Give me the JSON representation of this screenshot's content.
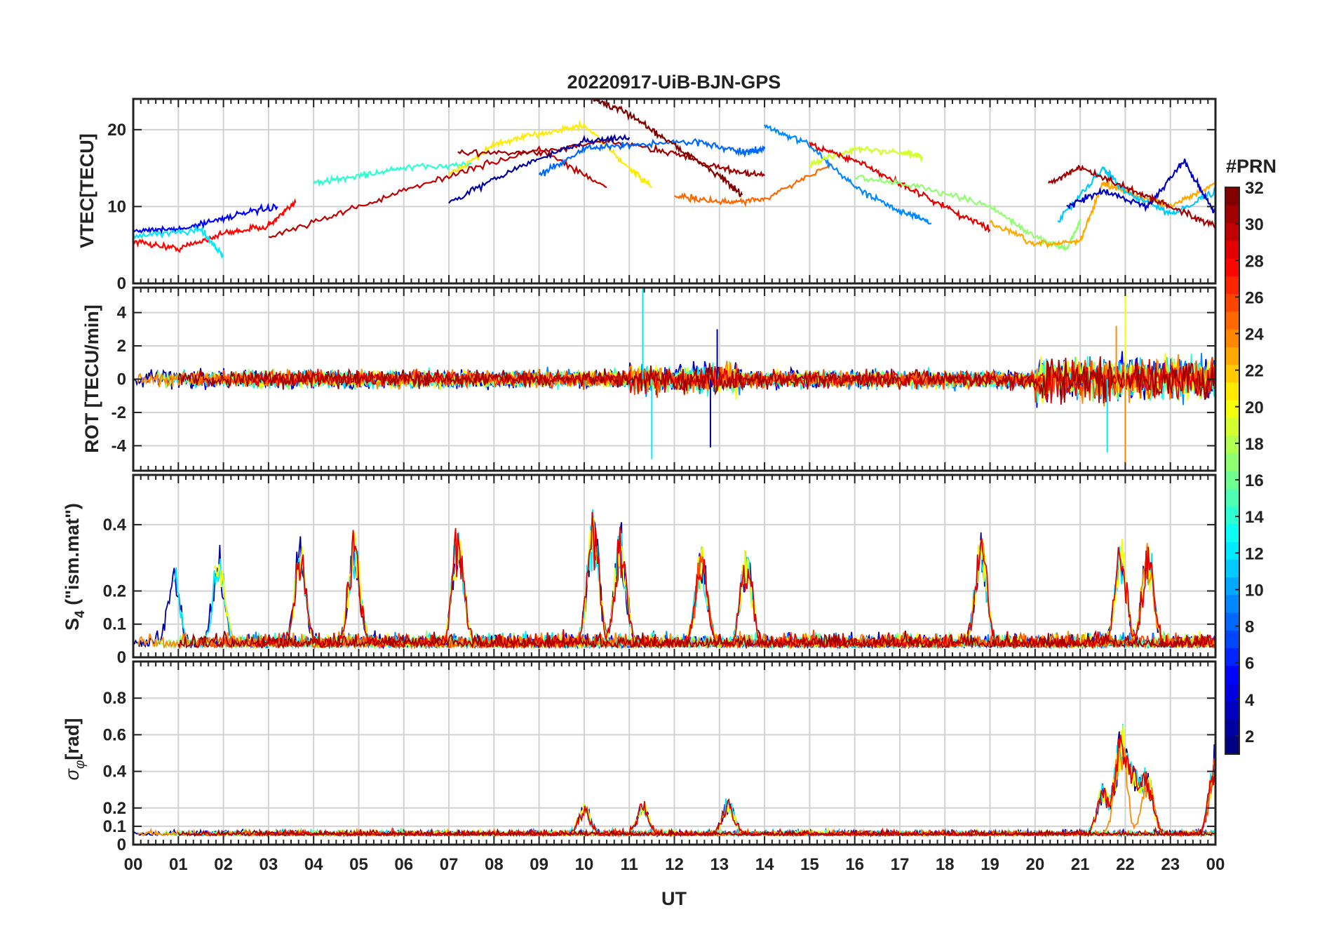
{
  "figure": {
    "title": "20220917-UiB-BJN-GPS",
    "xlabel": "UT",
    "colorbar": {
      "label": "#PRN",
      "range": [
        1,
        32
      ],
      "ticks": [
        "2",
        "4",
        "6",
        "8",
        "10",
        "12",
        "14",
        "16",
        "18",
        "20",
        "22",
        "24",
        "26",
        "28",
        "30",
        "32"
      ]
    }
  },
  "chart_data": [
    {
      "type": "line",
      "panel": "vtec",
      "title": "20220917-UiB-BJN-GPS",
      "ylabel": "VTEC[TECU]",
      "xlabel": "",
      "xlim": [
        0,
        24
      ],
      "ylim": [
        0,
        24
      ],
      "yticks": [
        0,
        10,
        20
      ],
      "ytick_labels": [
        "0",
        "10",
        "20"
      ],
      "xtick_labels": [
        "00",
        "01",
        "02",
        "03",
        "04",
        "05",
        "06",
        "07",
        "08",
        "09",
        "10",
        "11",
        "12",
        "13",
        "14",
        "15",
        "16",
        "17",
        "18",
        "19",
        "20",
        "21",
        "22",
        "23",
        "00"
      ],
      "grid": true,
      "color_by": "PRN (1-32, jet colormap)",
      "series": [
        {
          "prn": 28,
          "x": [
            0.0,
            1.0,
            2.0,
            3.0,
            3.6
          ],
          "y": [
            5.5,
            4.5,
            6.5,
            7.5,
            10.5
          ]
        },
        {
          "prn": 5,
          "x": [
            0.0,
            1.0,
            2.0,
            3.2
          ],
          "y": [
            7.0,
            7.0,
            8.5,
            10.0
          ]
        },
        {
          "prn": 12,
          "x": [
            0.0,
            1.5,
            2.0
          ],
          "y": [
            6.0,
            7.0,
            3.5
          ]
        },
        {
          "prn": 14,
          "x": [
            4.0,
            5.0,
            6.0,
            7.5
          ],
          "y": [
            13.0,
            14.0,
            15.0,
            15.5
          ]
        },
        {
          "prn": 30,
          "x": [
            3.0,
            5.0,
            7.0,
            9.0,
            10.5
          ],
          "y": [
            6.0,
            10.0,
            14.0,
            17.5,
            12.5
          ]
        },
        {
          "prn": 21,
          "x": [
            7.0,
            8.0,
            9.0,
            10.0,
            11.0,
            11.5
          ],
          "y": [
            14.0,
            18.0,
            19.5,
            20.5,
            15.0,
            12.5
          ]
        },
        {
          "prn": 31,
          "x": [
            7.2,
            9.0,
            10.5,
            12.0,
            13.0,
            14.0
          ],
          "y": [
            17.0,
            17.0,
            18.5,
            17.0,
            15.0,
            14.0
          ]
        },
        {
          "prn": 2,
          "x": [
            7.0,
            8.5,
            10.0,
            11.0
          ],
          "y": [
            10.5,
            15.0,
            18.5,
            19.0
          ]
        },
        {
          "prn": 8,
          "x": [
            9.0,
            10.0,
            11.0,
            12.5,
            13.5,
            14.0
          ],
          "y": [
            14.0,
            17.5,
            18.0,
            18.5,
            17.0,
            17.5
          ]
        },
        {
          "prn": 32,
          "x": [
            10.2,
            11.0,
            12.0,
            13.0,
            13.5
          ],
          "y": [
            24.0,
            22.0,
            18.0,
            14.0,
            11.5
          ]
        },
        {
          "prn": 25,
          "x": [
            12.0,
            13.0,
            14.0,
            15.5
          ],
          "y": [
            11.5,
            10.5,
            11.0,
            15.5
          ]
        },
        {
          "prn": 9,
          "x": [
            14.0,
            15.0,
            16.0,
            17.0,
            17.7
          ],
          "y": [
            20.5,
            18.0,
            12.5,
            9.5,
            7.8
          ]
        },
        {
          "prn": 19,
          "x": [
            15.0,
            16.0,
            17.0,
            17.5
          ],
          "y": [
            15.5,
            17.5,
            17.0,
            16.5
          ]
        },
        {
          "prn": 29,
          "x": [
            15.0,
            16.0,
            17.0,
            18.0,
            19.0
          ],
          "y": [
            18.0,
            16.0,
            13.0,
            10.0,
            7.0
          ]
        },
        {
          "prn": 17,
          "x": [
            16.0,
            17.5,
            19.0,
            20.0,
            20.7,
            21.0
          ],
          "y": [
            14.0,
            12.5,
            10.0,
            6.0,
            4.5,
            8.0
          ]
        },
        {
          "prn": 23,
          "x": [
            19.0,
            20.0,
            21.0,
            21.5,
            22.0,
            23.0,
            24.0
          ],
          "y": [
            8.0,
            5.0,
            5.5,
            13.0,
            12.0,
            10.0,
            13.0
          ]
        },
        {
          "prn": 11,
          "x": [
            20.5,
            21.5,
            22.0,
            23.0,
            24.0
          ],
          "y": [
            8.0,
            15.0,
            12.0,
            9.0,
            12.0
          ]
        },
        {
          "prn": 3,
          "x": [
            20.7,
            21.5,
            22.5,
            23.3,
            24.0
          ],
          "y": [
            10.0,
            12.0,
            10.0,
            16.0,
            9.0
          ]
        },
        {
          "prn": 31,
          "x": [
            20.3,
            21.0,
            22.0,
            23.0,
            24.0
          ],
          "y": [
            13.0,
            15.0,
            12.5,
            10.0,
            7.5
          ]
        }
      ]
    },
    {
      "type": "line",
      "panel": "rot",
      "ylabel": "ROT [TECU/min]",
      "xlim": [
        0,
        24
      ],
      "ylim": [
        -5.5,
        5.5
      ],
      "yticks": [
        -4,
        -2,
        0,
        2,
        4
      ],
      "ytick_labels": [
        "-4",
        "-2",
        "0",
        "2",
        "4"
      ],
      "grid": true,
      "color_by": "PRN (1-32, jet colormap)",
      "description_values": {
        "baseline": 0,
        "typical_amplitude": 0.7,
        "spikes": [
          {
            "x": 11.3,
            "y": 5.5,
            "prn": 12
          },
          {
            "x": 11.5,
            "y": -4.8,
            "prn": 12
          },
          {
            "x": 12.95,
            "y": 3.0,
            "prn": 2
          },
          {
            "x": 12.8,
            "y": -4.1,
            "prn": 2
          },
          {
            "x": 22.0,
            "y": 5.5,
            "prn": 20
          },
          {
            "x": 22.0,
            "y": -5.5,
            "prn": 24
          },
          {
            "x": 21.8,
            "y": 3.2,
            "prn": 24
          },
          {
            "x": 21.6,
            "y": -4.4,
            "prn": 12
          }
        ]
      }
    },
    {
      "type": "line",
      "panel": "s4",
      "ylabel": "S4 (\"ism.mat\")",
      "ylabel_main": "S",
      "ylabel_sub": "4",
      "ylabel_rest": " (\"ism.mat\")",
      "xlim": [
        0,
        24
      ],
      "ylim": [
        0,
        0.55
      ],
      "yticks": [
        0,
        0.1,
        0.2,
        0.4
      ],
      "ytick_labels": [
        "0",
        "0.1",
        "0.2",
        "0.4"
      ],
      "grid": true,
      "color_by": "PRN (1-32, jet colormap)",
      "description_values": {
        "baseline": 0.03,
        "peaks": [
          {
            "x": 0.9,
            "y": 0.26,
            "prn": 20
          },
          {
            "x": 1.9,
            "y": 0.31,
            "prn": 2
          },
          {
            "x": 3.7,
            "y": 0.31,
            "prn": 28
          },
          {
            "x": 4.9,
            "y": 0.34,
            "prn": 12
          },
          {
            "x": 7.2,
            "y": 0.36,
            "prn": 29
          },
          {
            "x": 10.2,
            "y": 0.41,
            "prn": 21
          },
          {
            "x": 10.8,
            "y": 0.37,
            "prn": 2
          },
          {
            "x": 12.6,
            "y": 0.3,
            "prn": 26
          },
          {
            "x": 13.6,
            "y": 0.3,
            "prn": 1
          },
          {
            "x": 18.8,
            "y": 0.36,
            "prn": 30
          },
          {
            "x": 21.9,
            "y": 0.32,
            "prn": 6
          },
          {
            "x": 22.5,
            "y": 0.31,
            "prn": 24
          }
        ]
      }
    },
    {
      "type": "line",
      "panel": "sigma_phi",
      "ylabel": "σφ[rad]",
      "ylabel_main": "σ",
      "ylabel_sub": "φ",
      "ylabel_rest": "[rad]",
      "xlim": [
        0,
        24
      ],
      "ylim": [
        0,
        1.0
      ],
      "yticks": [
        0,
        0.1,
        0.2,
        0.4,
        0.6,
        0.8
      ],
      "ytick_labels": [
        "0",
        "0.1",
        "0.2",
        "0.4",
        "0.6",
        "0.8"
      ],
      "grid": true,
      "color_by": "PRN (1-32, jet colormap)",
      "description_values": {
        "baseline": 0.05,
        "peaks": [
          {
            "x": 10.0,
            "y": 0.17,
            "prn": 12
          },
          {
            "x": 11.3,
            "y": 0.18,
            "prn": 12
          },
          {
            "x": 13.2,
            "y": 0.2,
            "prn": 30
          },
          {
            "x": 21.5,
            "y": 0.28,
            "prn": 12
          },
          {
            "x": 21.9,
            "y": 0.6,
            "prn": 24
          },
          {
            "x": 22.2,
            "y": 0.36,
            "prn": 20
          },
          {
            "x": 22.5,
            "y": 0.35,
            "prn": 24
          },
          {
            "x": 24.0,
            "y": 0.5,
            "prn": 26
          }
        ]
      }
    }
  ]
}
